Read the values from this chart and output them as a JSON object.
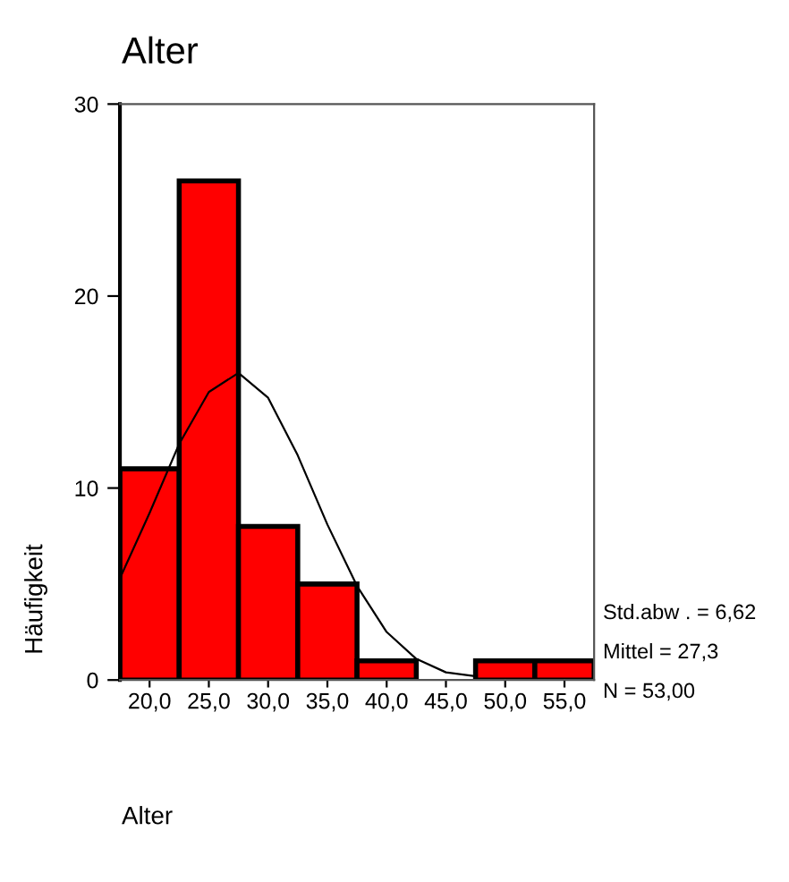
{
  "chart_data": {
    "type": "histogram",
    "title": "Alter",
    "xlabel": "Alter",
    "ylabel": "Häufigkeit",
    "bins": [
      17.5,
      22.5,
      27.5,
      32.5,
      37.5,
      42.5,
      47.5,
      52.5,
      57.5
    ],
    "values": [
      11,
      26,
      8,
      5,
      1,
      0,
      1,
      1
    ],
    "color": "#ff0000",
    "series": [
      {
        "type": "line",
        "color": "#000000",
        "x": [
          17.5,
          20,
          22.5,
          25,
          27.5,
          30,
          32.5,
          35,
          37.5,
          40,
          42.5,
          45,
          47.5
        ],
        "values": [
          5.3,
          8.7,
          12.3,
          15.0,
          16.0,
          14.7,
          11.7,
          8.1,
          4.9,
          2.5,
          1.1,
          0.4,
          0.2
        ]
      }
    ],
    "xlim": [
      17.5,
      57.5
    ],
    "ylim": [
      0,
      30
    ],
    "xticks": [
      {
        "value": 20,
        "label": "20,0"
      },
      {
        "value": 25,
        "label": "25,0"
      },
      {
        "value": 30,
        "label": "30,0"
      },
      {
        "value": 35,
        "label": "35,0"
      },
      {
        "value": 40,
        "label": "40,0"
      },
      {
        "value": 45,
        "label": "45,0"
      },
      {
        "value": 50,
        "label": "50,0"
      },
      {
        "value": 55,
        "label": "55,0"
      }
    ],
    "yticks": [
      0,
      10,
      20,
      30
    ],
    "grid": false,
    "legend": false,
    "annotations": [
      "Std.abw . = 6,62",
      "Mittel = 27,3",
      "N = 53,00"
    ]
  }
}
